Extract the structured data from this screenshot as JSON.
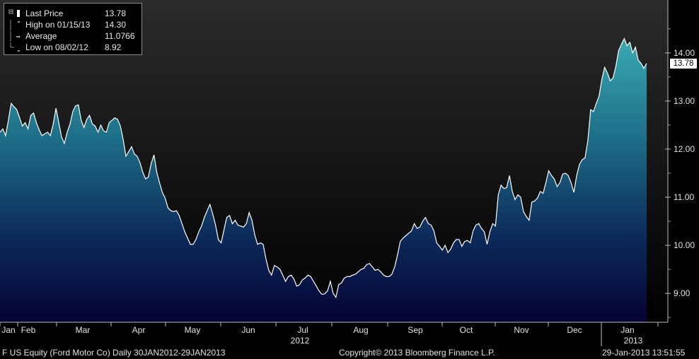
{
  "legend": {
    "rows": [
      {
        "label": "Last Price",
        "value": "13.78",
        "icon": "square-icon"
      },
      {
        "label": "High on 01/15/13",
        "value": "14.30",
        "icon": "high-marker-icon"
      },
      {
        "label": "Average",
        "value": "11.0766",
        "icon": "average-line-icon"
      },
      {
        "label": "Low on 08/02/12",
        "value": "8.92",
        "icon": "low-marker-icon"
      }
    ]
  },
  "last_price_tag": "13.78",
  "footer": {
    "left": "F US Equity (Ford Motor Co)  Daily 30JAN2012-29JAN2013",
    "center": "Copyright© 2013 Bloomberg Finance L.P.",
    "right": "29-Jan-2013 13:51:55"
  },
  "colors": {
    "background_top": "#2a2a2a",
    "area_top": "#2e8f9b",
    "area_bottom": "#04032e",
    "line": "#ffffff",
    "tag_bg": "#ffffff"
  },
  "chart_data": {
    "type": "area",
    "title": "",
    "xlabel": "",
    "ylabel": "",
    "ylim": [
      8.4,
      15.1
    ],
    "y_ticks": [
      "9.00",
      "10.00",
      "11.00",
      "12.00",
      "13.00",
      "14.00"
    ],
    "x_month_labels": [
      "Jan",
      "Feb",
      "Mar",
      "Apr",
      "May",
      "Jun",
      "Jul",
      "Aug",
      "Sep",
      "Oct",
      "Nov",
      "Dec",
      "Jan"
    ],
    "x_year_labels": [
      "2012",
      "2013"
    ],
    "series": [
      {
        "values": [
          12.35,
          12.42,
          12.28,
          12.6,
          12.95,
          12.88,
          12.82,
          12.65,
          12.48,
          12.55,
          12.42,
          12.7,
          12.75,
          12.55,
          12.4,
          12.28,
          12.32,
          12.35,
          12.28,
          12.52,
          12.85,
          12.55,
          12.25,
          12.12,
          12.35,
          12.52,
          12.78,
          12.9,
          12.92,
          12.6,
          12.45,
          12.62,
          12.7,
          12.52,
          12.48,
          12.35,
          12.5,
          12.38,
          12.35,
          12.55,
          12.6,
          12.65,
          12.62,
          12.48,
          12.2,
          11.85,
          11.95,
          12.05,
          11.9,
          11.85,
          11.72,
          11.52,
          11.38,
          11.42,
          11.7,
          11.88,
          11.52,
          11.3,
          11.1,
          10.98,
          10.78,
          10.72,
          10.7,
          10.72,
          10.62,
          10.45,
          10.28,
          10.15,
          10.02,
          10.02,
          10.12,
          10.28,
          10.4,
          10.58,
          10.72,
          10.85,
          10.65,
          10.42,
          10.12,
          10.05,
          10.32,
          10.58,
          10.62,
          10.45,
          10.52,
          10.42,
          10.4,
          10.38,
          10.45,
          10.68,
          10.52,
          10.22,
          10.02,
          10.05,
          10.02,
          9.72,
          9.48,
          9.38,
          9.58,
          9.55,
          9.5,
          9.38,
          9.25,
          9.35,
          9.38,
          9.3,
          9.15,
          9.18,
          9.28,
          9.32,
          9.38,
          9.35,
          9.25,
          9.15,
          9.05,
          8.98,
          8.99,
          9.05,
          9.25,
          9.0,
          8.92,
          9.18,
          9.22,
          9.32,
          9.35,
          9.35,
          9.38,
          9.4,
          9.45,
          9.5,
          9.52,
          9.6,
          9.62,
          9.55,
          9.48,
          9.5,
          9.45,
          9.38,
          9.35,
          9.35,
          9.4,
          9.55,
          9.8,
          10.08,
          10.15,
          10.2,
          10.25,
          10.3,
          10.45,
          10.35,
          10.38,
          10.5,
          10.58,
          10.45,
          10.42,
          10.3,
          10.05,
          9.98,
          9.9,
          10.0,
          9.85,
          9.92,
          10.05,
          10.12,
          10.12,
          9.98,
          10.08,
          10.1,
          10.05,
          10.3,
          10.42,
          10.45,
          10.35,
          10.28,
          10.02,
          10.28,
          10.45,
          10.4,
          11.05,
          11.25,
          11.18,
          11.2,
          11.45,
          11.12,
          10.95,
          11.05,
          11.0,
          10.7,
          10.6,
          10.52,
          10.9,
          10.92,
          10.98,
          11.12,
          11.08,
          11.3,
          11.55,
          11.45,
          11.38,
          11.22,
          11.3,
          11.48,
          11.5,
          11.45,
          11.3,
          11.1,
          11.45,
          11.68,
          11.78,
          11.82,
          12.18,
          12.82,
          12.78,
          12.95,
          13.1,
          13.45,
          13.7,
          13.58,
          13.42,
          13.48,
          13.72,
          14.05,
          14.18,
          14.3,
          14.15,
          14.22,
          14.0,
          14.12,
          13.85,
          13.78,
          13.68,
          13.78
        ]
      }
    ]
  }
}
